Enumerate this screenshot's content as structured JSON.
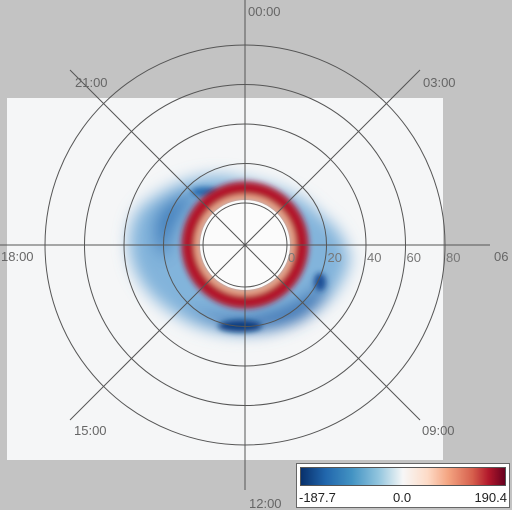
{
  "chart_data": {
    "type": "heatmap",
    "coordinate_system": "polar",
    "angular_labels": [
      "00:00",
      "03:00",
      "06",
      "09:00",
      "12:00",
      "15:00",
      "18:00",
      "21:00"
    ],
    "radial_ticks": [
      0,
      20,
      40,
      60,
      80
    ],
    "colorbar": {
      "min_label": "-187.7",
      "mid_label": "0.0",
      "max_label": "190.4",
      "min": -187.7,
      "max": 190.4,
      "colors": [
        "#08306b",
        "#2166ac",
        "#92c5de",
        "#f7f7f7",
        "#f4a582",
        "#d6604d",
        "#67001f"
      ]
    },
    "features": [
      {
        "name": "positive ring",
        "center_value": 190.4,
        "ring_radius_data": 12
      },
      {
        "name": "negative band",
        "center_value": -187.7,
        "sector": "15:00-09:00 via 12:00 and 18:00"
      }
    ]
  }
}
